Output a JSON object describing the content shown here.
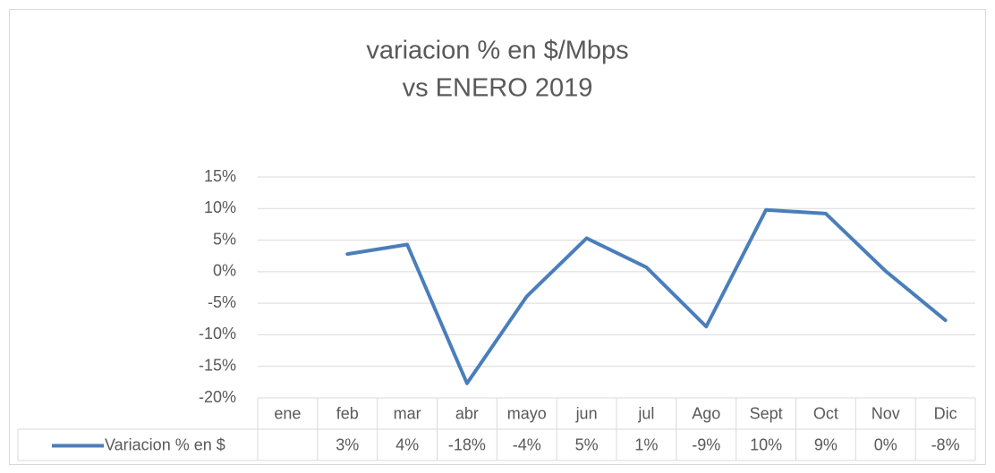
{
  "chart_data": {
    "type": "line",
    "title": [
      "variacion % en $/Mbps",
      "vs ENERO 2019"
    ],
    "categories": [
      "ene",
      "feb",
      "mar",
      "abr",
      "mayo",
      "jun",
      "jul",
      "Ago",
      "Sept",
      "Oct",
      "Nov",
      "Dic"
    ],
    "series": [
      {
        "name": "Variacion % en $",
        "color": "#4a7ebb",
        "values": [
          null,
          2.8,
          4.3,
          -17.7,
          -3.9,
          5.3,
          0.7,
          -8.7,
          9.8,
          9.2,
          0.1,
          -7.7
        ],
        "value_labels": [
          null,
          "3%",
          "4%",
          "-18%",
          "-4%",
          "5%",
          "1%",
          "-9%",
          "10%",
          "9%",
          "0%",
          "-8%"
        ]
      }
    ],
    "ylim": [
      -20,
      15
    ],
    "yticks": [
      {
        "value": -20,
        "label": "-20%"
      },
      {
        "value": -15,
        "label": "-15%"
      },
      {
        "value": -10,
        "label": "-10%"
      },
      {
        "value": -5,
        "label": "-5%"
      },
      {
        "value": 0,
        "label": "0%"
      },
      {
        "value": 5,
        "label": "5%"
      },
      {
        "value": 10,
        "label": "10%"
      },
      {
        "value": 15,
        "label": "15%"
      }
    ],
    "grid": true,
    "data_table": true
  }
}
